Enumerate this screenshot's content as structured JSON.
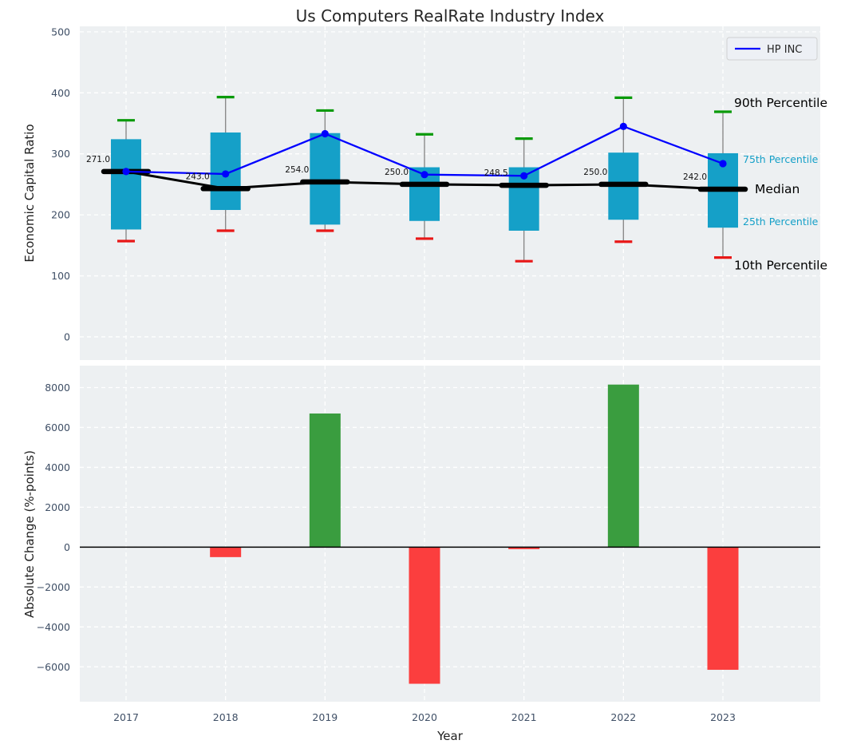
{
  "title": "Us Computers RealRate Industry Index",
  "legend": {
    "label": "HP INC",
    "color": "#0000ff"
  },
  "colors": {
    "axes_bg": "#edf0f2",
    "grid": "#ffffff",
    "box": "#15a0c8",
    "whisker": "#8a8a8a",
    "cap_top": "#0a9a0a",
    "cap_bottom": "#e81717",
    "median": "#000000",
    "hp_line": "#0000ff",
    "bar_pos": "#3a9d3f",
    "bar_neg": "#fb3e3e",
    "tick": "#3f4f66",
    "text": "#1f1f1f"
  },
  "right_labels": [
    {
      "text": "90th Percentile",
      "color": "#000000",
      "size": "large"
    },
    {
      "text": "75th Percentile",
      "color": "#15a0c8",
      "size": "small"
    },
    {
      "text": "Median",
      "color": "#000000",
      "size": "large"
    },
    {
      "text": "25th Percentile",
      "color": "#15a0c8",
      "size": "small"
    },
    {
      "text": "10th Percentile",
      "color": "#000000",
      "size": "large"
    }
  ],
  "chart_data": [
    {
      "type": "box-whisker-line",
      "title": "Us Computers RealRate Industry Index",
      "ylabel": "Economic Capital Ratio",
      "ylim": [
        -38,
        509
      ],
      "yticks": [
        0,
        100,
        200,
        300,
        400,
        500
      ],
      "grid": true,
      "legend_entries": [
        "HP INC"
      ],
      "legend_position": "upper right",
      "x": [
        2017,
        2018,
        2019,
        2020,
        2021,
        2022,
        2023
      ],
      "series": [
        {
          "name": "90th Percentile",
          "values": [
            355,
            393,
            371,
            332,
            325,
            392,
            369
          ]
        },
        {
          "name": "75th Percentile",
          "values": [
            324,
            335,
            334,
            278,
            278,
            302,
            301
          ]
        },
        {
          "name": "Median",
          "values": [
            271.0,
            243.0,
            254.0,
            250.0,
            248.5,
            250.0,
            242.0
          ]
        },
        {
          "name": "25th Percentile",
          "values": [
            176,
            208,
            184,
            190,
            174,
            192,
            179
          ]
        },
        {
          "name": "10th Percentile",
          "values": [
            157,
            174,
            174,
            161,
            124,
            156,
            130
          ]
        },
        {
          "name": "HP INC",
          "values": [
            271,
            267,
            333,
            266,
            264,
            345,
            284
          ]
        }
      ],
      "annotations": [
        "271.0",
        "243.0",
        "254.0",
        "250.0",
        "248.5",
        "250.0",
        "242.0"
      ]
    },
    {
      "type": "bar",
      "ylabel": "Absolute Change (%-points)",
      "xlabel": "Year",
      "ylim": [
        -7750,
        9100
      ],
      "yticks": [
        -6000,
        -4000,
        -2000,
        0,
        2000,
        4000,
        6000,
        8000
      ],
      "grid": true,
      "categories": [
        2017,
        2018,
        2019,
        2020,
        2021,
        2022,
        2023
      ],
      "values": [
        0,
        -500,
        6700,
        -6850,
        -100,
        8150,
        -6150
      ]
    }
  ]
}
